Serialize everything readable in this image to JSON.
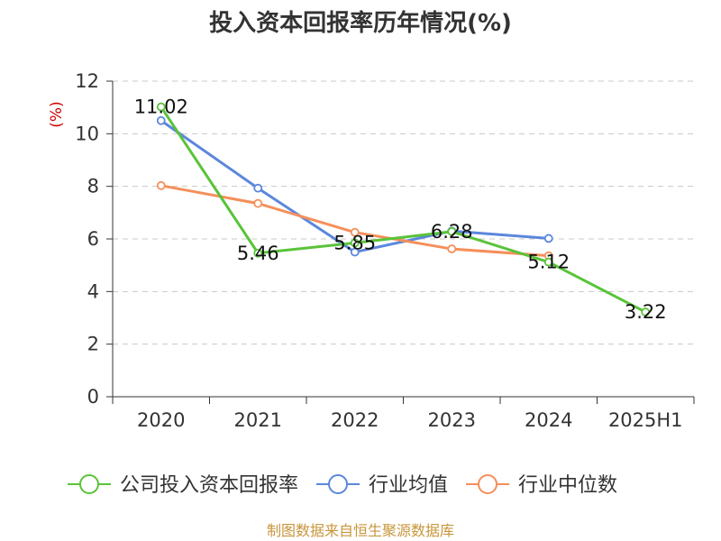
{
  "chart_data": {
    "type": "line",
    "title": "投入资本回报率历年情况(%)",
    "ylabel": "(%)",
    "xlabel": "",
    "categories": [
      "2020",
      "2021",
      "2022",
      "2023",
      "2024",
      "2025H1"
    ],
    "ylim": [
      0,
      12
    ],
    "yticks": [
      0,
      2,
      4,
      6,
      8,
      10,
      12
    ],
    "grid": true,
    "legend_position": "bottom",
    "series": [
      {
        "name": "公司投入资本回报率",
        "color": "#5ac33a",
        "values": [
          11.02,
          5.46,
          5.85,
          6.28,
          5.12,
          3.22
        ],
        "labels": [
          "11.02",
          "5.46",
          "5.85",
          "6.28",
          "5.12",
          "3.22"
        ]
      },
      {
        "name": "行业均值",
        "color": "#5b87dd",
        "values": [
          10.5,
          7.93,
          5.5,
          6.3,
          6.02,
          null
        ]
      },
      {
        "name": "行业中位数",
        "color": "#f58f5a",
        "values": [
          8.03,
          7.35,
          6.25,
          5.62,
          5.36,
          null
        ]
      }
    ]
  },
  "source": "制图数据来自恒生聚源数据库"
}
